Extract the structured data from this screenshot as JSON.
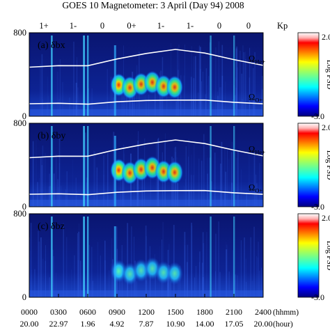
{
  "title": "GOES 10 Magnetometer: 3 April (Day 94) 2008",
  "kp": {
    "label": "Kp",
    "values": [
      "1+",
      "1-",
      "0",
      "0+",
      "1-",
      "1-",
      "0",
      "0"
    ]
  },
  "colors": {
    "background": "#ffffff",
    "boundary": "#ffffff",
    "spectrogram_floor": "#0a1a7a"
  },
  "chart_data": {
    "type": "heatmap",
    "xlabel_units": [
      "(hhmm)",
      "(hour)"
    ],
    "x_hhmm_ticks": [
      "0000",
      "0300",
      "0600",
      "0900",
      "1200",
      "1500",
      "1800",
      "2100",
      "2400"
    ],
    "x_hour_ticks": [
      "20.00",
      "22.97",
      "1.96",
      "4.92",
      "7.87",
      "10.90",
      "14.00",
      "17.05",
      "20.00"
    ],
    "xlim_hours": [
      0,
      24
    ],
    "colorscale": "jet",
    "panels": [
      {
        "label": "(a)",
        "component": "δbx",
        "ylim": [
          0,
          800
        ],
        "yticks": [
          "0",
          "800"
        ],
        "colorbar": {
          "label": "Log PSD",
          "max": "2.0",
          "min": "-3.0"
        },
        "curves": [
          {
            "name_base": "Ω",
            "name_sub": "He+",
            "x": [
              0,
              3,
              6,
              9,
              12,
              15,
              18,
              21,
              24
            ],
            "y": [
              470,
              480,
              490,
              545,
              600,
              645,
              600,
              545,
              490
            ]
          },
          {
            "name_base": "Ω",
            "name_sub": "O+",
            "x": [
              0,
              3,
              6,
              9,
              12,
              15,
              18,
              21,
              24
            ],
            "y": [
              120,
              120,
              122,
              135,
              150,
              160,
              150,
              136,
              122
            ]
          }
        ],
        "enhancements": [
          {
            "start_hour": 8.6,
            "end_hour": 15.5,
            "freq_low": 200,
            "freq_high": 400
          }
        ]
      },
      {
        "label": "(b)",
        "component": "δby",
        "ylim": [
          0,
          800
        ],
        "yticks": [
          "0",
          "800"
        ],
        "colorbar": {
          "label": "Log PSD",
          "max": "2.0",
          "min": "-3.0"
        },
        "curves": [
          {
            "name_base": "Ω",
            "name_sub": "He+",
            "x": [
              0,
              3,
              6,
              9,
              12,
              15,
              18,
              21,
              24
            ],
            "y": [
              470,
              480,
              490,
              545,
              600,
              645,
              600,
              545,
              490
            ]
          },
          {
            "name_base": "Ω",
            "name_sub": "O+",
            "x": [
              0,
              3,
              6,
              9,
              12,
              15,
              18,
              21,
              24
            ],
            "y": [
              120,
              120,
              122,
              135,
              150,
              160,
              150,
              136,
              122
            ]
          }
        ],
        "enhancements": [
          {
            "start_hour": 8.6,
            "end_hour": 15.5,
            "freq_low": 250,
            "freq_high": 450
          }
        ]
      },
      {
        "label": "(c)",
        "component": "δbz",
        "ylim": [
          0,
          800
        ],
        "yticks": [
          "0",
          "800"
        ],
        "colorbar": {
          "label": "Log PSD",
          "max": "2.0",
          "min": "-3.0"
        },
        "curves": [],
        "enhancements": [
          {
            "start_hour": 8.6,
            "end_hour": 15.5,
            "freq_low": 150,
            "freq_high": 350
          }
        ]
      }
    ]
  }
}
